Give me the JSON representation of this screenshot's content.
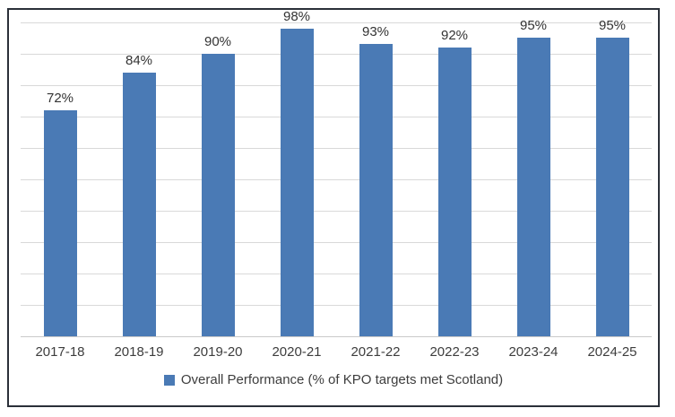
{
  "chart_data": {
    "type": "bar",
    "categories": [
      "2017-18",
      "2018-19",
      "2019-20",
      "2020-21",
      "2021-22",
      "2022-23",
      "2023-24",
      "2024-25"
    ],
    "values": [
      72,
      84,
      90,
      98,
      93,
      92,
      95,
      95
    ],
    "data_labels": [
      "72%",
      "84%",
      "90%",
      "98%",
      "93%",
      "92%",
      "95%",
      "95%"
    ],
    "title": "",
    "xlabel": "",
    "ylabel": "",
    "ylim": [
      0,
      100
    ],
    "gridline_step": 10,
    "grid": true,
    "y_axis_labels_visible": false,
    "legend_position": "bottom",
    "series": [
      {
        "name": "Overall Performance (% of KPO targets met Scotland)",
        "values": [
          72,
          84,
          90,
          98,
          93,
          92,
          95,
          95
        ]
      }
    ]
  },
  "legend": {
    "label": "Overall Performance (% of KPO targets met Scotland)"
  },
  "colors": {
    "bar": "#4a7ab5",
    "gridline": "#d9d9d9",
    "axis_line": "#c9c9c9",
    "border": "#2b3039",
    "label_text": "#333333",
    "axis_text": "#3d3d3d"
  }
}
